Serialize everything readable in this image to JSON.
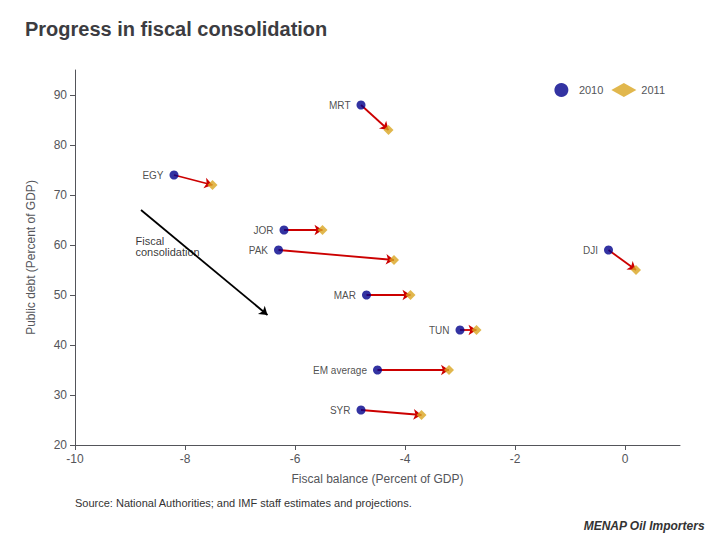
{
  "chart_data": {
    "type": "scatter",
    "title": "Progress in fiscal consolidation",
    "xlabel": "Fiscal balance (Percent of GDP)",
    "ylabel": "Public debt (Percent of GDP)",
    "xlim": [
      -10,
      1
    ],
    "ylim": [
      20,
      95
    ],
    "xticks": [
      -10,
      -8,
      -6,
      -4,
      -2,
      0
    ],
    "yticks": [
      20,
      30,
      40,
      50,
      60,
      70,
      80,
      90
    ],
    "grid": false,
    "legend": "upper right",
    "labels": [
      "MRT",
      "EGY",
      "JOR",
      "PAK",
      "MAR",
      "TUN",
      "EM average",
      "SYR",
      "DJI"
    ],
    "series": [
      {
        "name": "2010",
        "color": "#00008B",
        "marker": "circle",
        "x": [
          -4.8,
          -8.2,
          -6.2,
          -6.3,
          -4.7,
          -3.0,
          -4.5,
          -4.8,
          -0.3
        ],
        "values": [
          88,
          74,
          63,
          59,
          50,
          43,
          35,
          27,
          59
        ]
      },
      {
        "name": "2011",
        "color": "#DAA520",
        "marker": "diamond",
        "x": [
          -4.3,
          -7.5,
          -5.5,
          -4.2,
          -3.9,
          -2.7,
          -3.2,
          -3.7,
          0.2
        ],
        "values": [
          83,
          72,
          63,
          57,
          50,
          43,
          35,
          26,
          55
        ]
      }
    ],
    "arrows": [
      {
        "from": [
          -4.8,
          88
        ],
        "to": [
          -4.3,
          83
        ],
        "color": "#CC0000"
      },
      {
        "from": [
          -8.2,
          74
        ],
        "to": [
          -7.5,
          72
        ],
        "color": "#CC0000"
      },
      {
        "from": [
          -6.2,
          63
        ],
        "to": [
          -5.5,
          63
        ],
        "color": "#CC0000"
      },
      {
        "from": [
          -6.3,
          59
        ],
        "to": [
          -4.2,
          57
        ],
        "color": "#CC0000"
      },
      {
        "from": [
          -4.7,
          50
        ],
        "to": [
          -3.9,
          50
        ],
        "color": "#CC0000"
      },
      {
        "from": [
          -3.0,
          43
        ],
        "to": [
          -2.7,
          43
        ],
        "color": "#CC0000"
      },
      {
        "from": [
          -4.5,
          35
        ],
        "to": [
          -3.2,
          35
        ],
        "color": "#CC0000"
      },
      {
        "from": [
          -4.8,
          27
        ],
        "to": [
          -3.7,
          26
        ],
        "color": "#CC0000"
      },
      {
        "from": [
          -0.3,
          59
        ],
        "to": [
          0.2,
          55
        ],
        "color": "#CC0000"
      },
      {
        "from": [
          -8.8,
          67
        ],
        "to": [
          -6.5,
          46
        ],
        "color": "#000000"
      }
    ],
    "annotations": [
      {
        "text": "Fiscal\nconsolidation",
        "x": -8.9,
        "y": 62
      }
    ],
    "source": "Source: National Authorities; and IMF staff estimates and projections.",
    "footer": "MENAP Oil Importers"
  }
}
